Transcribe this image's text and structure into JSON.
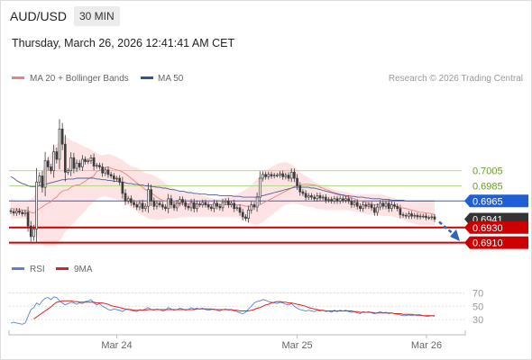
{
  "header": {
    "symbol": "AUD/USD",
    "timeframe": "30 MIN",
    "datetime": "Thursday, March 26, 2026 12:41:41 AM CET"
  },
  "copyright": "Research © 2026 Trading Central",
  "colors": {
    "candle": "#3d3d3d",
    "bollinger_fill": "#fde3e3",
    "ma20": "#f08080",
    "ma50": "#4a5c9c",
    "target_line": "#cc0000",
    "resistance_line": "#b5d98a",
    "resistance_text": "#6a9a2a",
    "pivot_line": "#4a6ee0",
    "pivot_tag": "#1f5fd6",
    "current_tag": "#333333",
    "rsi_line": "#5b7fd8",
    "rsi_ma_line": "#e02020",
    "arrow": "#2f66b3"
  },
  "chart_data": [
    {
      "type": "candlestick",
      "legend": [
        {
          "name": "MA 20 + Bollinger Bands",
          "color": "#f08080"
        },
        {
          "name": "MA 50",
          "color": "#2f5597"
        }
      ],
      "x_ticks": [
        "Mar 24",
        "Mar 25",
        "Mar 26"
      ],
      "ylim": [
        0.68905,
        0.71115
      ],
      "levels": [
        {
          "value": 0.7005,
          "label": "0.7005",
          "kind": "resistance"
        },
        {
          "value": 0.6985,
          "label": "0.6985",
          "kind": "resistance"
        },
        {
          "value": 0.6965,
          "label": "0.6965",
          "kind": "pivot"
        },
        {
          "value": 0.6941,
          "label": "0.6941",
          "kind": "current"
        },
        {
          "value": 0.693,
          "label": "0.6930",
          "kind": "target"
        },
        {
          "value": 0.691,
          "label": "0.6910",
          "kind": "target"
        }
      ],
      "close": [
        0.6951,
        0.6949,
        0.6952,
        0.695,
        0.6948,
        0.695,
        0.6932,
        0.6918,
        0.6928,
        0.699,
        0.6998,
        0.6983,
        0.7018,
        0.701,
        0.7005,
        0.703,
        0.702,
        0.706,
        0.704,
        0.7003,
        0.7005,
        0.7022,
        0.7008,
        0.7015,
        0.701,
        0.702,
        0.7017,
        0.7018,
        0.7022,
        0.7011,
        0.7012,
        0.701,
        0.7002,
        0.7006,
        0.7,
        0.6998,
        0.6994,
        0.6995,
        0.699,
        0.6975,
        0.6965,
        0.6968,
        0.6963,
        0.696,
        0.6957,
        0.6962,
        0.6955,
        0.6958,
        0.698,
        0.6965,
        0.6958,
        0.6962,
        0.696,
        0.6957,
        0.6955,
        0.6968,
        0.696,
        0.6956,
        0.6962,
        0.6967,
        0.6963,
        0.6958,
        0.6956,
        0.6963,
        0.6955,
        0.6961,
        0.696,
        0.6963,
        0.696,
        0.6957,
        0.6955,
        0.6962,
        0.6958,
        0.6956,
        0.6963,
        0.6965,
        0.696,
        0.6962,
        0.6955,
        0.6956,
        0.695,
        0.6944,
        0.6942,
        0.6953,
        0.696,
        0.6957,
        0.697,
        0.6995,
        0.7,
        0.6997,
        0.7,
        0.6998,
        0.6999,
        0.6999,
        0.7001,
        0.6997,
        0.6999,
        0.6995,
        0.7003,
        0.6995,
        0.6985,
        0.6977,
        0.6975,
        0.697,
        0.6972,
        0.697,
        0.6968,
        0.6972,
        0.6969,
        0.697,
        0.6966,
        0.6967,
        0.6965,
        0.6968,
        0.6965,
        0.6968,
        0.6966,
        0.6968,
        0.6965,
        0.696,
        0.6963,
        0.6958,
        0.6955,
        0.696,
        0.6958,
        0.696,
        0.6956,
        0.695,
        0.6957,
        0.6962,
        0.6958,
        0.6962,
        0.6955,
        0.696,
        0.6958,
        0.6955,
        0.6947,
        0.6946,
        0.6945,
        0.6948,
        0.6945,
        0.6946,
        0.6944,
        0.6945,
        0.6945,
        0.6943,
        0.6943,
        0.6944,
        0.6941
      ],
      "ma20": [
        0.6955,
        0.6955,
        0.6954,
        0.6954,
        0.6953,
        0.6953,
        0.6952,
        0.695,
        0.6949,
        0.6952,
        0.6955,
        0.6957,
        0.696,
        0.6962,
        0.6964,
        0.6968,
        0.697,
        0.6975,
        0.6978,
        0.6979,
        0.698,
        0.6983,
        0.6985,
        0.6986,
        0.6986,
        0.6989,
        0.6991,
        0.6994,
        0.6996,
        0.6998,
        0.7004,
        0.7005,
        0.7007,
        0.7009,
        0.701,
        0.7008,
        0.7007,
        0.7006,
        0.7005,
        0.7003,
        0.7001,
        0.6998,
        0.6995,
        0.6992,
        0.6989,
        0.6986,
        0.6983,
        0.698,
        0.6978,
        0.6976,
        0.6973,
        0.697,
        0.6968,
        0.6966,
        0.6965,
        0.6964,
        0.6963,
        0.6962,
        0.6962,
        0.6961,
        0.6961,
        0.6961,
        0.6961,
        0.6961,
        0.6961,
        0.6961,
        0.696,
        0.696,
        0.696,
        0.696,
        0.696,
        0.696,
        0.696,
        0.696,
        0.696,
        0.696,
        0.696,
        0.696,
        0.696,
        0.696,
        0.696,
        0.6959,
        0.6958,
        0.6958,
        0.6958,
        0.6958,
        0.6958,
        0.696,
        0.6962,
        0.6964,
        0.6966,
        0.6968,
        0.697,
        0.6972,
        0.6974,
        0.6976,
        0.6978,
        0.698,
        0.6982,
        0.6984,
        0.6985,
        0.6986,
        0.6987,
        0.6987,
        0.6987,
        0.6986,
        0.6986,
        0.6985,
        0.6983,
        0.6982,
        0.698,
        0.6979,
        0.6977,
        0.6976,
        0.6975,
        0.6974,
        0.6972,
        0.6971,
        0.697,
        0.6969,
        0.6968,
        0.6966,
        0.6965,
        0.6964,
        0.6963,
        0.6962,
        0.6961,
        0.696,
        0.696,
        0.696,
        0.696,
        0.6959,
        0.6959,
        0.6959,
        0.6958,
        0.6957,
        0.6956,
        0.6956,
        0.6955,
        0.6954,
        0.6953,
        0.6952,
        0.6951,
        0.695,
        0.695,
        0.6949,
        0.6949,
        0.6948,
        0.6947
      ],
      "bb_upper": [
        0.6968,
        0.6967,
        0.6966,
        0.6965,
        0.6964,
        0.6964,
        0.6965,
        0.6968,
        0.697,
        0.6985,
        0.6998,
        0.7005,
        0.7015,
        0.7022,
        0.7028,
        0.7035,
        0.704,
        0.7045,
        0.705,
        0.705,
        0.7048,
        0.7045,
        0.7043,
        0.7042,
        0.704,
        0.7038,
        0.7036,
        0.7035,
        0.7033,
        0.703,
        0.7028,
        0.7026,
        0.7025,
        0.7026,
        0.7027,
        0.7026,
        0.7025,
        0.7023,
        0.7021,
        0.7019,
        0.7016,
        0.7013,
        0.7011,
        0.701,
        0.7009,
        0.7007,
        0.7004,
        0.7002,
        0.7001,
        0.7,
        0.6999,
        0.6996,
        0.6994,
        0.6991,
        0.6988,
        0.6986,
        0.6983,
        0.6981,
        0.6979,
        0.6978,
        0.6977,
        0.6977,
        0.6976,
        0.6975,
        0.6975,
        0.6974,
        0.6973,
        0.6972,
        0.6971,
        0.697,
        0.6969,
        0.6968,
        0.6968,
        0.6968,
        0.6969,
        0.697,
        0.6971,
        0.6972,
        0.6973,
        0.6974,
        0.6976,
        0.6978,
        0.698,
        0.6983,
        0.6986,
        0.699,
        0.6994,
        0.6998,
        0.7002,
        0.7005,
        0.7008,
        0.701,
        0.7012,
        0.7014,
        0.7015,
        0.7016,
        0.7016,
        0.7015,
        0.7013,
        0.701,
        0.7007,
        0.7003,
        0.7,
        0.6998,
        0.6996,
        0.6993,
        0.699,
        0.6988,
        0.6987,
        0.6986,
        0.6985,
        0.6983,
        0.6981,
        0.698,
        0.6979,
        0.6978,
        0.6978,
        0.6977,
        0.6976,
        0.6975,
        0.6974,
        0.6974,
        0.6974,
        0.6974,
        0.6974,
        0.6974,
        0.6974,
        0.6974,
        0.6974,
        0.6974,
        0.6973,
        0.6972,
        0.6971,
        0.697,
        0.6969,
        0.6967,
        0.6965,
        0.6964,
        0.6964,
        0.6964,
        0.6964,
        0.6964,
        0.6964,
        0.6964,
        0.6964,
        0.6964,
        0.6964,
        0.6964,
        0.6964
      ],
      "bb_lower": [
        0.6942,
        0.6942,
        0.6942,
        0.6942,
        0.6942,
        0.6942,
        0.6939,
        0.6932,
        0.6928,
        0.692,
        0.6912,
        0.6909,
        0.6905,
        0.6905,
        0.6906,
        0.6905,
        0.6907,
        0.6912,
        0.6918,
        0.6924,
        0.6928,
        0.6933,
        0.6936,
        0.694,
        0.6944,
        0.6948,
        0.6952,
        0.6957,
        0.696,
        0.6964,
        0.6967,
        0.6969,
        0.6971,
        0.6971,
        0.697,
        0.6969,
        0.6968,
        0.6967,
        0.6966,
        0.6964,
        0.6962,
        0.6959,
        0.6956,
        0.6954,
        0.6951,
        0.6948,
        0.6946,
        0.6944,
        0.6942,
        0.6941,
        0.6941,
        0.694,
        0.694,
        0.694,
        0.6941,
        0.6942,
        0.6942,
        0.6942,
        0.6942,
        0.6943,
        0.6944,
        0.6944,
        0.6944,
        0.6944,
        0.6944,
        0.6944,
        0.6944,
        0.6944,
        0.6944,
        0.6944,
        0.6944,
        0.6944,
        0.6944,
        0.6944,
        0.6944,
        0.6944,
        0.6944,
        0.6944,
        0.6944,
        0.6944,
        0.6942,
        0.694,
        0.6939,
        0.6937,
        0.6935,
        0.6934,
        0.6934,
        0.6935,
        0.6937,
        0.694,
        0.6943,
        0.6946,
        0.6949,
        0.6952,
        0.6955,
        0.6958,
        0.696,
        0.6961,
        0.6962,
        0.6962,
        0.6961,
        0.696,
        0.6959,
        0.6958,
        0.6957,
        0.6957,
        0.6956,
        0.6955,
        0.6954,
        0.6954,
        0.6953,
        0.6953,
        0.6953,
        0.6953,
        0.6953,
        0.6953,
        0.6953,
        0.6953,
        0.6953,
        0.6952,
        0.6951,
        0.695,
        0.6949,
        0.6949,
        0.6948,
        0.6947,
        0.6947,
        0.6946,
        0.6946,
        0.6946,
        0.6945,
        0.6945,
        0.6945,
        0.6945,
        0.6944,
        0.6943,
        0.6942,
        0.694,
        0.6939,
        0.6937,
        0.6936,
        0.6935,
        0.6934,
        0.6933,
        0.6933,
        0.6933,
        0.6933,
        0.6933,
        0.6933
      ],
      "ma50": [
        0.6997,
        0.6995,
        0.6992,
        0.699,
        0.6988,
        0.6987,
        0.6985,
        0.6984,
        0.6984,
        0.6984,
        0.6985,
        0.6986,
        0.6987,
        0.6988,
        0.6989,
        0.699,
        0.6991,
        0.6992,
        0.6993,
        0.6993,
        0.6994,
        0.6994,
        0.6994,
        0.6995,
        0.6995,
        0.6995,
        0.6995,
        0.6995,
        0.6995,
        0.6995,
        0.6994,
        0.6994,
        0.6993,
        0.6993,
        0.6992,
        0.6992,
        0.6991,
        0.6991,
        0.699,
        0.699,
        0.6989,
        0.6988,
        0.6988,
        0.6987,
        0.6987,
        0.6986,
        0.6986,
        0.6985,
        0.6985,
        0.6984,
        0.6984,
        0.6983,
        0.6983,
        0.6982,
        0.6982,
        0.6981,
        0.698,
        0.698,
        0.6979,
        0.6978,
        0.6978,
        0.6977,
        0.6976,
        0.6976,
        0.6975,
        0.6975,
        0.6974,
        0.6974,
        0.6974,
        0.6973,
        0.6973,
        0.6973,
        0.6973,
        0.6972,
        0.6972,
        0.6972,
        0.6972,
        0.6972,
        0.6971,
        0.6971,
        0.6971,
        0.697,
        0.697,
        0.697,
        0.697,
        0.697,
        0.697,
        0.6971,
        0.6972,
        0.6973,
        0.6974,
        0.6975,
        0.6976,
        0.6977,
        0.6978,
        0.6979,
        0.698,
        0.6981,
        0.6982,
        0.6983,
        0.6983,
        0.6983,
        0.6983,
        0.6983,
        0.6983,
        0.6982,
        0.6982,
        0.6981,
        0.698,
        0.6979,
        0.6978,
        0.6977,
        0.6976,
        0.6975,
        0.6974,
        0.6973,
        0.6973,
        0.6972,
        0.6972,
        0.6971,
        0.6971,
        0.697,
        0.697,
        0.697,
        0.6969,
        0.6969,
        0.6968,
        0.6968,
        0.6968,
        0.6968,
        0.6967,
        0.6967,
        0.6967,
        0.6966,
        0.6966,
        0.6966,
        0.6966,
        0.6966,
        0.6965,
        0.6965,
        0.6965,
        0.6965,
        0.6965,
        0.6965,
        0.6965,
        0.6965,
        0.6965,
        0.6965,
        0.6965
      ]
    },
    {
      "type": "line",
      "legend": [
        {
          "name": "RSI",
          "color": "#5b7fd8"
        },
        {
          "name": "9MA",
          "color": "#e02020"
        }
      ],
      "y_ticks": [
        "70",
        "50",
        "30"
      ],
      "ylim": [
        10,
        80
      ],
      "series": [
        {
          "name": "RSI",
          "values": [
            25,
            26,
            25,
            24,
            23,
            25,
            35,
            45,
            48,
            55,
            52,
            58,
            62,
            63,
            60,
            64,
            63,
            58,
            55,
            52,
            54,
            56,
            55,
            53,
            55,
            54,
            57,
            58,
            60,
            55,
            52,
            54,
            50,
            48,
            45,
            44,
            46,
            45,
            44,
            42,
            45,
            46,
            44,
            43,
            42,
            45,
            44,
            46,
            48,
            45,
            44,
            46,
            45,
            43,
            44,
            48,
            46,
            44,
            45,
            47,
            46,
            44,
            45,
            48,
            46,
            47,
            46,
            47,
            45,
            44,
            45,
            46,
            44,
            43,
            45,
            46,
            44,
            45,
            43,
            42,
            40,
            39,
            41,
            46,
            50,
            55,
            57,
            58,
            60,
            59,
            57,
            56,
            55,
            54,
            56,
            55,
            53,
            52,
            54,
            50,
            47,
            45,
            44,
            43,
            44,
            43,
            42,
            44,
            43,
            44,
            42,
            43,
            41,
            44,
            42,
            44,
            43,
            44,
            42,
            41,
            42,
            40,
            39,
            42,
            41,
            42,
            40,
            39,
            40,
            42,
            40,
            41,
            39,
            40,
            39,
            38,
            37,
            36,
            36,
            37,
            36,
            37,
            36,
            36,
            36,
            35,
            35,
            36,
            35
          ]
        },
        {
          "name": "9MA",
          "values": [
            null,
            null,
            null,
            null,
            null,
            null,
            null,
            null,
            31,
            34,
            37,
            40,
            43,
            46,
            49,
            53,
            56,
            57,
            58,
            58,
            58,
            58,
            57,
            57,
            56,
            56,
            56,
            56,
            56,
            56,
            55,
            55,
            55,
            54,
            53,
            51,
            50,
            49,
            48,
            47,
            46,
            45,
            45,
            44,
            44,
            44,
            44,
            44,
            45,
            45,
            45,
            45,
            45,
            45,
            45,
            45,
            45,
            45,
            45,
            45,
            45,
            45,
            45,
            45,
            45,
            46,
            46,
            46,
            46,
            46,
            46,
            45,
            45,
            45,
            45,
            45,
            45,
            45,
            44,
            44,
            43,
            43,
            43,
            43,
            44,
            45,
            47,
            48,
            50,
            52,
            53,
            55,
            56,
            57,
            57,
            56,
            56,
            55,
            55,
            54,
            53,
            52,
            51,
            50,
            48,
            47,
            46,
            45,
            44,
            44,
            43,
            43,
            43,
            43,
            43,
            43,
            43,
            43,
            43,
            43,
            42,
            42,
            41,
            41,
            41,
            41,
            41,
            40,
            40,
            40,
            40,
            40,
            40,
            40,
            39,
            39,
            39,
            38,
            38,
            38,
            38,
            37,
            37,
            37,
            36,
            36,
            36,
            36,
            36
          ]
        }
      ]
    }
  ]
}
